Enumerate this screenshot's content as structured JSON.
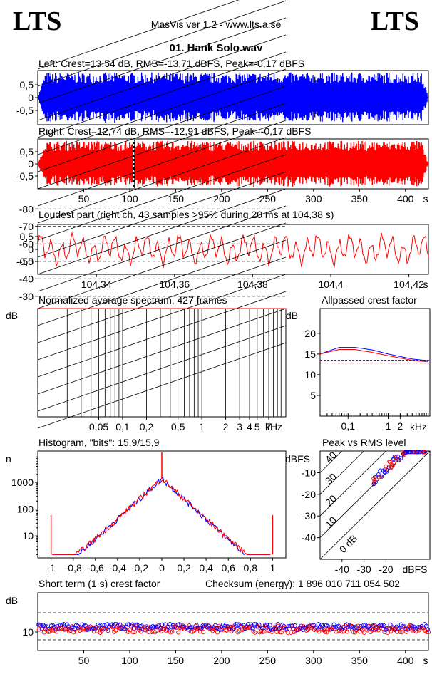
{
  "header": {
    "logo_left": "LTS",
    "logo_right": "LTS",
    "app_title": "MasVis ver 1.2 - www.lts.a.se",
    "file_name": "01. Hank Solo.wav"
  },
  "colors": {
    "left": "#0000ff",
    "right": "#ff0000"
  },
  "chart_data": [
    {
      "type": "area",
      "name": "left-waveform",
      "title": "Left: Crest=13,54 dB, RMS=-13,71 dBFS, Peak=-0,17 dBFS",
      "yticks": [
        "0,5",
        "0",
        "-0,5"
      ],
      "ylim": [
        -1,
        1
      ],
      "xlim": [
        0,
        425
      ],
      "envelope_peak": 0.98
    },
    {
      "type": "area",
      "name": "right-waveform",
      "title": "Right: Crest=12,74 dB, RMS=-12,91 dBFS, Peak=-0,17 dBFS",
      "yticks": [
        "0,5",
        "0",
        "-0,5"
      ],
      "ylim": [
        -1,
        1
      ],
      "xlim": [
        0,
        425
      ],
      "xticks": [
        "50",
        "100",
        "150",
        "200",
        "250",
        "300",
        "350",
        "400"
      ],
      "xunit": "s",
      "marker_time": 104.38
    },
    {
      "type": "line",
      "name": "loudest-part",
      "title": "Loudest part (right ch, 43 samples >95% during 20 ms at 104,38 s)",
      "yticks": [
        "0,5",
        "0",
        "-0,5"
      ],
      "ylim": [
        -1,
        1
      ],
      "xlim": [
        104.325,
        104.425
      ],
      "xticks": [
        "104,34",
        "104,36",
        "104,38",
        "104,4",
        "104,42"
      ],
      "xunit": "s"
    },
    {
      "type": "line",
      "name": "average-spectrum",
      "title": "Normalized average spectrum, 427 frames",
      "ylabel": "dB",
      "yticks": [
        "-30",
        "-40",
        "-50",
        "-60",
        "-70",
        "-80"
      ],
      "xticks": [
        "0,05",
        "0,1",
        "0,2",
        "0,5",
        "1",
        "2",
        "3",
        "4",
        "5",
        "7"
      ],
      "xunit": "kHz"
    },
    {
      "type": "line",
      "name": "allpassed-crest-factor",
      "title": "Allpassed crest factor",
      "ylabel": "dB",
      "yticks": [
        "20",
        "15",
        "10",
        "5"
      ],
      "xticks": [
        "0,1",
        "1",
        "2"
      ],
      "xunit": "kHz",
      "series": [
        {
          "x": [
            0.02,
            0.06,
            0.15,
            0.4,
            1,
            4,
            10
          ],
          "y": [
            15,
            16.6,
            16.6,
            16,
            15,
            13.8,
            13.4
          ]
        },
        {
          "x": [
            0.02,
            0.06,
            0.15,
            0.4,
            1,
            4,
            10
          ],
          "y": [
            15,
            16.1,
            16.1,
            15.4,
            14.6,
            13.5,
            13.1
          ]
        }
      ],
      "ref_levels": [
        13.5,
        12.8
      ]
    },
    {
      "type": "line",
      "name": "histogram",
      "title": "Histogram, \"bits\": 15,9/15,9",
      "ylabel": "n",
      "yticks": [
        "1000",
        "100",
        "10"
      ],
      "xticks": [
        "-1",
        "-0,8",
        "-0,6",
        "-0,4",
        "-0,2",
        "0",
        "0,2",
        "0,4",
        "0,6",
        "0,8",
        "1"
      ]
    },
    {
      "type": "scatter",
      "name": "peak-vs-rms",
      "title": "Peak vs RMS level",
      "ylabel": "dBFS",
      "yticks": [
        "-10",
        "-20",
        "-30",
        "-40"
      ],
      "xticks": [
        "-40",
        "-30",
        "-20"
      ],
      "xunit": "dBFS",
      "crest_lines": [
        "40",
        "30",
        "20",
        "10",
        "0 dB"
      ]
    },
    {
      "type": "scatter",
      "name": "short-term-crest",
      "title": "Short term (1 s) crest factor",
      "checksum": "Checksum (energy):  1 896 010 711 054 502",
      "ylabel": "dB",
      "yticks": [
        "10"
      ],
      "xticks": [
        "50",
        "100",
        "150",
        "200",
        "250",
        "300",
        "350",
        "400"
      ],
      "xunit": "s"
    }
  ]
}
